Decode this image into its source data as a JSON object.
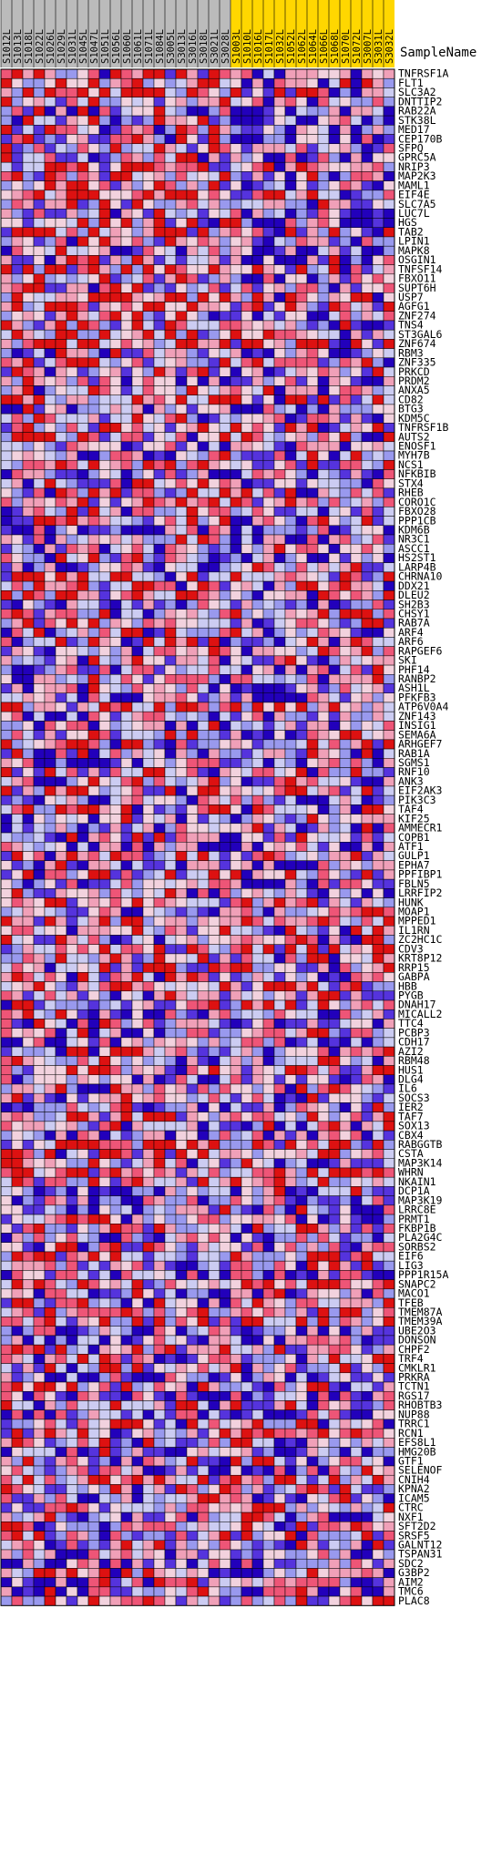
{
  "chart_data": {
    "type": "heatmap",
    "title": "",
    "header_label": "SampleName",
    "columns": [
      "S1012L",
      "S1013L",
      "S1018L",
      "S1022L",
      "S1026L",
      "S1029L",
      "S1031L",
      "S1045L",
      "S1047L",
      "S1051L",
      "S1056L",
      "S1060L",
      "S1061L",
      "S1071L",
      "S1084L",
      "S3005L",
      "S3013L",
      "S3016L",
      "S3018L",
      "S3021L",
      "S3028L",
      "S1003L",
      "S1010L",
      "S1016L",
      "S1017L",
      "S1032L",
      "S1052L",
      "S1062L",
      "S1064L",
      "S1066L",
      "S1068L",
      "S1070L",
      "S1072L",
      "S3007L",
      "S3031L",
      "S3032L"
    ],
    "column_groups": [
      {
        "name": "",
        "count": 21,
        "color": "#bbbbbb"
      },
      {
        "name": "",
        "count": 15,
        "color": "#ffd700"
      }
    ],
    "rows": [
      "TNFRSF1A",
      "FLT1",
      "SLC3A2",
      "DNTTIP2",
      "RAB22A",
      "STK38L",
      "MED17",
      "CEP170B",
      "SFPQ",
      "GPRC5A",
      "NRIP3",
      "MAP2K3",
      "MAML1",
      "EIF4E",
      "SLC7A5",
      "LUC7L",
      "HGS",
      "TAB2",
      "LPIN1",
      "MAPK8",
      "OSGIN1",
      "TNFSF14",
      "FBXO11",
      "SUPT6H",
      "USP7",
      "AGFG1",
      "ZNF274",
      "TNS4",
      "ST3GAL6",
      "ZNF674",
      "RBM3",
      "ZNF335",
      "PRKCD",
      "PRDM2",
      "ANXA5",
      "CD82",
      "BTG3",
      "KDM5C",
      "TNFRSF1B",
      "AUTS2",
      "ENOSF1",
      "MYH7B",
      "NCS1",
      "NFKBIB",
      "STX4",
      "RHEB",
      "CORO1C",
      "FBXO28",
      "PPP1CB",
      "KDM6B",
      "NR3C1",
      "ASCC1",
      "HS2ST1",
      "LARP4B",
      "CHRNA10",
      "DDX21",
      "DLEU2",
      "SH2B3",
      "CHSY1",
      "RAB7A",
      "ARF4",
      "ARF6",
      "RAPGEF6",
      "SKI",
      "PHF14",
      "RANBP2",
      "ASH1L",
      "PFKFB3",
      "ATP6V0A4",
      "ZNF143",
      "INSIG1",
      "SEMA6A",
      "ARHGEF7",
      "RAB1A",
      "SGMS1",
      "RNF10",
      "ANK3",
      "EIF2AK3",
      "PIK3C3",
      "TAF4",
      "KIF25",
      "AMMECR1",
      "COPB1",
      "ATF1",
      "GULP1",
      "EPHA7",
      "PPFIBP1",
      "FBLN5",
      "LRRFIP2",
      "HUNK",
      "MOAP1",
      "MPPED1",
      "IL1RN",
      "ZC2HC1C",
      "CDV3",
      "KRT8P12",
      "RRP15",
      "GABPA",
      "HBB",
      "PYGB",
      "DNAH17",
      "MICALL2",
      "TTC4",
      "PCBP3",
      "CDH17",
      "AZI2",
      "RBM48",
      "HUS1",
      "DLG4",
      "IL6",
      "SOCS3",
      "IER2",
      "TAF7",
      "SOX13",
      "CBX4",
      "RABGGTB",
      "CSTA",
      "MAP3K14",
      "WHRN",
      "NKAIN1",
      "DCP1A",
      "MAP3K19",
      "LRRC8E",
      "PRMT1",
      "FKBP1B",
      "PLA2G4C",
      "SORBS2",
      "EIF6",
      "LIG3",
      "PPP1R15A",
      "SNAPC2",
      "MACO1",
      "TFEB",
      "TMEM87A",
      "TMEM39A",
      "UBE2O3",
      "DONSON",
      "CHPF2",
      "TRF4",
      "CMKLR1",
      "PRKRA",
      "TCTN1",
      "RGS17",
      "RHOBTB3",
      "NUP88",
      "TRRC1",
      "RCN1",
      "EFS8L1",
      "HMG20B",
      "GTF1",
      "SELENOF",
      "CNIH4",
      "KPNA2",
      "ICAM5",
      "CTRC",
      "NXF1",
      "SFT2D2",
      "SRSF5",
      "GALNT12",
      "TSPAN31",
      "SDC2",
      "G3BP2",
      "AIM2",
      "TMC6",
      "PLAC8"
    ],
    "color_scale": [
      "#2200bb",
      "#5533dd",
      "#9999ee",
      "#ccccf2",
      "#f2d2de",
      "#f0a0b8",
      "#ee5577",
      "#dd1111"
    ],
    "levels": [
      "-3",
      "-2",
      "-1",
      "0",
      "1",
      "2",
      "3",
      "4"
    ],
    "seed": 1
  }
}
